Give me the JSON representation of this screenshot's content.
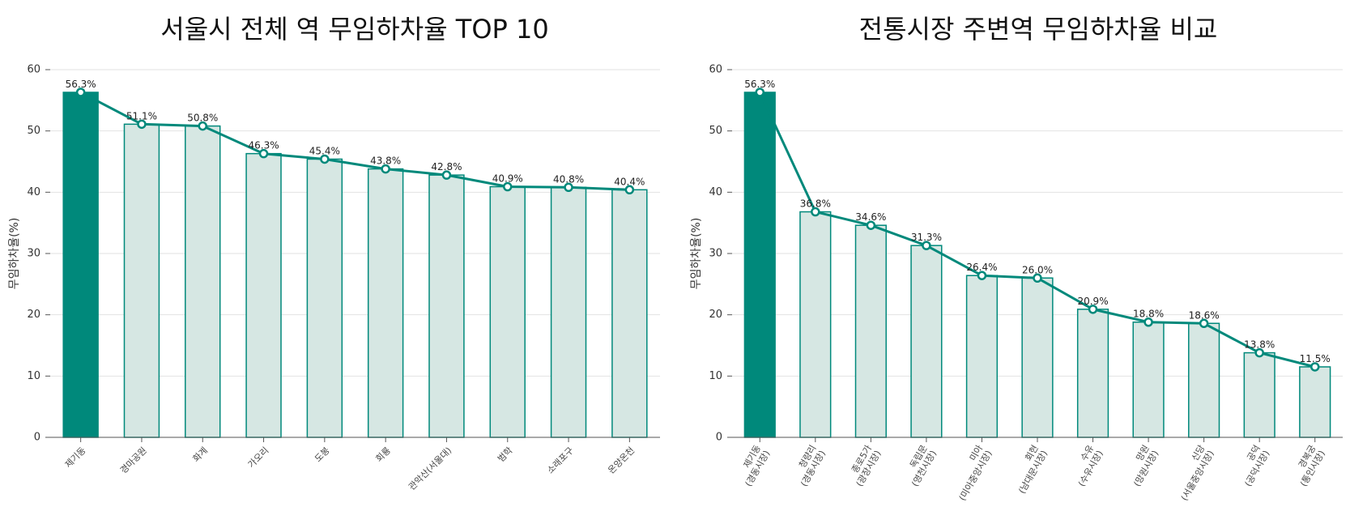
{
  "chart_data": [
    {
      "type": "bar",
      "title": "서울시 전체 역 무임하차율 TOP 10",
      "xlabel": "",
      "ylabel": "무임하차율(%)",
      "ylim": [
        0,
        60
      ],
      "yticks": [
        0,
        10,
        20,
        30,
        40,
        50,
        60
      ],
      "grid": true,
      "categories": [
        [
          "제기동"
        ],
        [
          "경마공원"
        ],
        [
          "화계"
        ],
        [
          "가오리"
        ],
        [
          "도봉"
        ],
        [
          "회룡"
        ],
        [
          "관악산(서울대)"
        ],
        [
          "범학"
        ],
        [
          "소래포구"
        ],
        [
          "온양온천"
        ]
      ],
      "values": [
        56.3,
        51.1,
        50.8,
        46.3,
        45.4,
        43.8,
        42.8,
        40.9,
        40.8,
        40.4
      ],
      "data_labels": [
        "56.3%",
        "51.1%",
        "50.8%",
        "46.3%",
        "45.4%",
        "43.8%",
        "42.8%",
        "40.9%",
        "40.8%",
        "40.4%"
      ],
      "highlight_index": 0,
      "colors": {
        "highlight": "#00897b",
        "bar_fill": "#d6e7e3",
        "bar_edge": "#00897b",
        "line": "#00897b"
      }
    },
    {
      "type": "bar",
      "title": "전통시장 주변역 무임하차율 비교",
      "xlabel": "",
      "ylabel": "무임하차율(%)",
      "ylim": [
        0,
        60
      ],
      "yticks": [
        0,
        10,
        20,
        30,
        40,
        50,
        60
      ],
      "grid": true,
      "categories": [
        [
          "제기동",
          "(경동시장)"
        ],
        [
          "청량리",
          "(경동시장)"
        ],
        [
          "종로5가",
          "(광장시장)"
        ],
        [
          "독립문",
          "(영천시장)"
        ],
        [
          "미아",
          "(미아중앙시장)"
        ],
        [
          "회현",
          "(남대문시장)"
        ],
        [
          "수유",
          "(수유시장)"
        ],
        [
          "망원",
          "(망원시장)"
        ],
        [
          "신당",
          "(서울중앙시장)"
        ],
        [
          "공덕",
          "(공덕시장)"
        ],
        [
          "경복궁",
          "(통인시장)"
        ]
      ],
      "values": [
        56.3,
        36.8,
        34.6,
        31.3,
        26.4,
        26.0,
        20.9,
        18.8,
        18.6,
        13.8,
        11.5
      ],
      "data_labels": [
        "56.3%",
        "36.8%",
        "34.6%",
        "31.3%",
        "26.4%",
        "26.0%",
        "20.9%",
        "18.8%",
        "18.6%",
        "13.8%",
        "11.5%"
      ],
      "highlight_index": 0,
      "colors": {
        "highlight": "#00897b",
        "bar_fill": "#d6e7e3",
        "bar_edge": "#00897b",
        "line": "#00897b"
      }
    }
  ]
}
